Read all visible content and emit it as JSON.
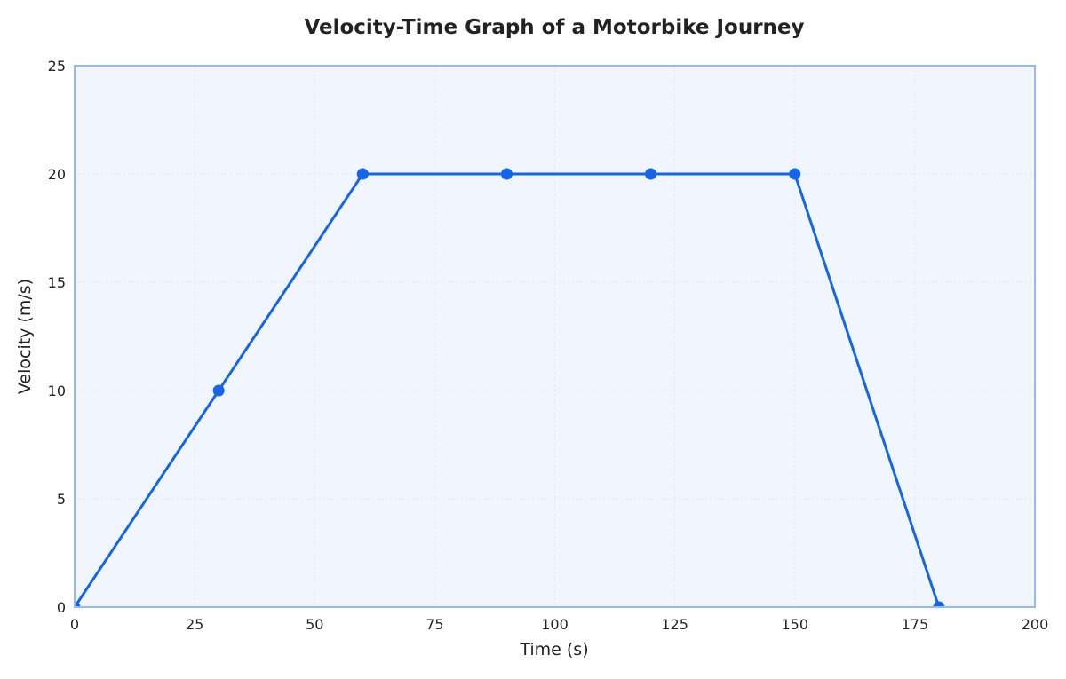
{
  "chart_data": {
    "type": "line",
    "title": "Velocity-Time Graph of a Motorbike Journey",
    "xlabel": "Time (s)",
    "ylabel": "Velocity (m/s)",
    "xlim": [
      0,
      200
    ],
    "ylim": [
      0,
      25
    ],
    "xticks": [
      0,
      25,
      50,
      75,
      100,
      125,
      150,
      175,
      200
    ],
    "yticks": [
      0,
      5,
      10,
      15,
      20,
      25
    ],
    "grid": true,
    "legend": "none",
    "series": [
      {
        "x": [
          0,
          30,
          60,
          90,
          120,
          150,
          180
        ],
        "y": [
          0,
          10,
          20,
          20,
          20,
          20,
          0
        ],
        "markers": true
      }
    ],
    "colors": {
      "line": "#1565e8",
      "plot_background": "#f1f6fe",
      "frame": "#93b9f5",
      "grid": "#dde6f3"
    }
  }
}
